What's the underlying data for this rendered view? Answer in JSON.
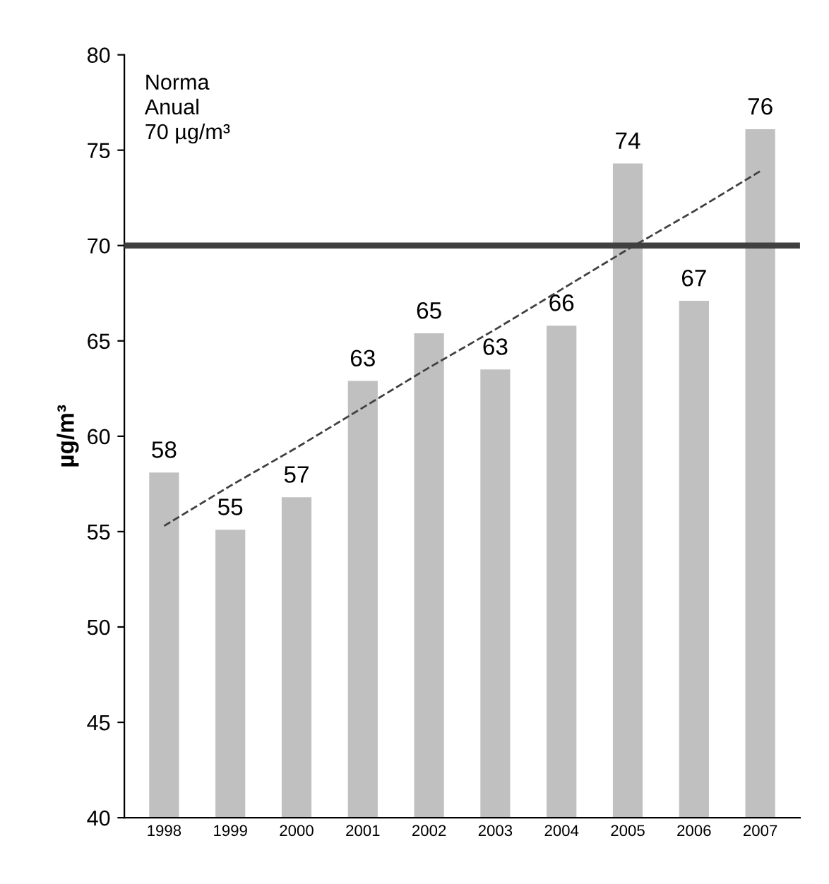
{
  "chart_data": {
    "type": "bar",
    "ylabel": "µg/m³",
    "categories": [
      "1998",
      "1999",
      "2000",
      "2001",
      "2002",
      "2003",
      "2004",
      "2005",
      "2006",
      "2007"
    ],
    "series": [
      {
        "color": "#c0c0c0",
        "values": [
          58.1,
          55.1,
          56.8,
          62.9,
          65.4,
          63.5,
          65.8,
          74.3,
          67.1,
          76.1
        ],
        "value_labels": [
          "58",
          "55",
          "57",
          "63",
          "65",
          "63",
          "66",
          "74",
          "67",
          "76"
        ]
      },
      {
        "type": "line",
        "color": "#404040",
        "line_style": "dashed",
        "values": [
          55.3,
          57.4,
          59.4,
          61.5,
          63.6,
          65.6,
          67.7,
          69.8,
          71.8,
          73.9
        ]
      }
    ],
    "annotations": [
      "Norma\nAnual\n70 µg/m³"
    ],
    "ylim": [
      40,
      80
    ],
    "yticks": [
      40,
      45,
      50,
      55,
      60,
      65,
      70,
      75,
      80
    ],
    "ref_lines": [
      {
        "axis": "y",
        "value": 70,
        "color": "#404040"
      }
    ],
    "grid": false,
    "legend": false
  }
}
